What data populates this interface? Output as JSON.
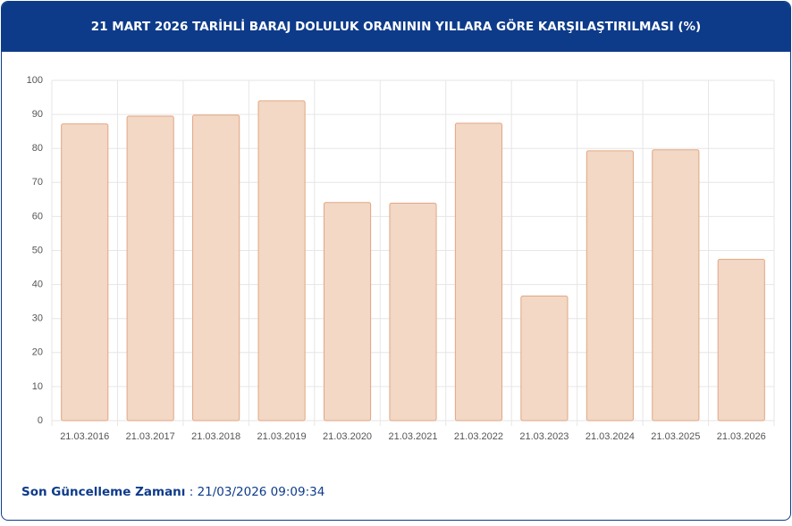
{
  "chart_data": {
    "type": "bar",
    "title": "21 MART 2026 TARİHLİ BARAJ DOLULUK ORANININ YILLARA GÖRE KARŞILAŞTIRILMASI (%)",
    "categories": [
      "21.03.2016",
      "21.03.2017",
      "21.03.2018",
      "21.03.2019",
      "21.03.2020",
      "21.03.2021",
      "21.03.2022",
      "21.03.2023",
      "21.03.2024",
      "21.03.2025",
      "21.03.2026"
    ],
    "values": [
      87.2,
      89.5,
      89.8,
      94.0,
      64.1,
      63.9,
      87.4,
      36.6,
      79.3,
      79.6,
      47.4
    ],
    "color": "#f2d8c5",
    "border_color": "#e3a683",
    "ylim": [
      0,
      100
    ],
    "yticks": [
      0,
      10,
      20,
      30,
      40,
      50,
      60,
      70,
      80,
      90,
      100
    ],
    "grid": true
  },
  "footer": {
    "label": "Son Güncelleme Zamanı",
    "separator": ":",
    "value": "21/03/2026 09:09:34"
  }
}
